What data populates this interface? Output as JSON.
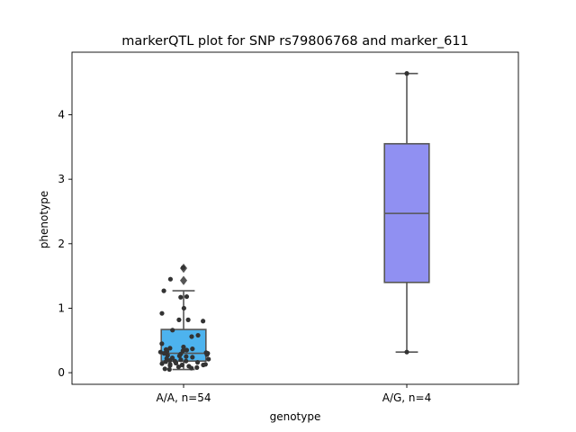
{
  "chart_data": {
    "type": "box",
    "title": "markerQTL plot for SNP rs79806768 and marker_611",
    "xlabel": "genotype",
    "ylabel": "phenotype",
    "ylim": [
      -0.18,
      4.97
    ],
    "yticks": [
      0,
      1,
      2,
      3,
      4
    ],
    "categories": [
      "A/A, n=54",
      "A/G, n=4"
    ],
    "colors": {
      "box_0": "#4db3ee",
      "box_1": "#9090f2",
      "line": "#555555",
      "points": "#333333"
    },
    "boxes": [
      {
        "category": "A/A, n=54",
        "whisker_low": 0.05,
        "q1": 0.18,
        "median": 0.3,
        "q3": 0.67,
        "whisker_high": 1.27,
        "outliers": [
          1.43,
          1.62
        ]
      },
      {
        "category": "A/G, n=4",
        "whisker_low": 0.32,
        "q1": 1.4,
        "median": 2.47,
        "q3": 3.55,
        "whisker_high": 4.64,
        "outliers": []
      }
    ],
    "points": [
      {
        "group": 0,
        "values": [
          1.63,
          1.18,
          1.27,
          1.45,
          1.17,
          1.0,
          0.92,
          0.8,
          0.82,
          0.82,
          0.66,
          0.58,
          0.56,
          0.45,
          0.4,
          0.38,
          0.37,
          0.36,
          0.35,
          0.34,
          0.33,
          0.32,
          0.31,
          0.3,
          0.3,
          0.29,
          0.28,
          0.27,
          0.26,
          0.25,
          0.24,
          0.23,
          0.22,
          0.21,
          0.2,
          0.19,
          0.18,
          0.18,
          0.17,
          0.16,
          0.15,
          0.15,
          0.14,
          0.13,
          0.13,
          0.12,
          0.12,
          0.11,
          0.1,
          0.09,
          0.08,
          0.07,
          0.06,
          0.05
        ]
      },
      {
        "group": 1,
        "values": [
          4.64,
          0.32
        ]
      }
    ]
  }
}
